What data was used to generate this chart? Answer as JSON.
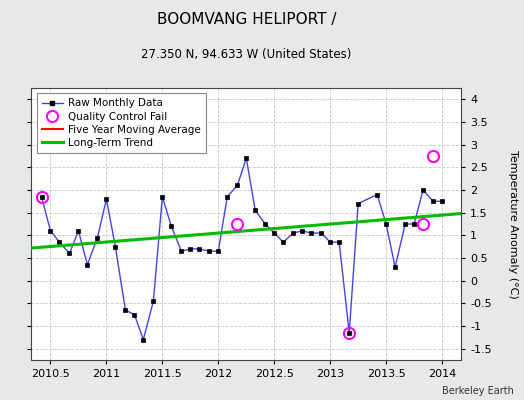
{
  "title": "BOOMVANG HELIPORT /",
  "subtitle": "27.350 N, 94.633 W (United States)",
  "ylabel": "Temperature Anomaly (°C)",
  "watermark": "Berkeley Earth",
  "xlim": [
    2010.33,
    2014.17
  ],
  "ylim": [
    -1.75,
    4.25
  ],
  "yticks": [
    -1.5,
    -1.0,
    -0.5,
    0.0,
    0.5,
    1.0,
    1.5,
    2.0,
    2.5,
    3.0,
    3.5,
    4.0
  ],
  "xticks": [
    2010.5,
    2011.0,
    2011.5,
    2012.0,
    2012.5,
    2013.0,
    2013.5,
    2014.0
  ],
  "raw_x": [
    2010.42,
    2010.5,
    2010.58,
    2010.67,
    2010.75,
    2010.83,
    2010.92,
    2011.0,
    2011.08,
    2011.17,
    2011.25,
    2011.33,
    2011.42,
    2011.5,
    2011.58,
    2011.67,
    2011.75,
    2011.83,
    2011.92,
    2012.0,
    2012.08,
    2012.17,
    2012.25,
    2012.33,
    2012.42,
    2012.5,
    2012.58,
    2012.67,
    2012.75,
    2012.83,
    2012.92,
    2013.0,
    2013.08,
    2013.17,
    2013.25,
    2013.42,
    2013.5,
    2013.58,
    2013.67,
    2013.75,
    2013.83,
    2013.92,
    2014.0
  ],
  "raw_y": [
    1.85,
    1.1,
    0.85,
    0.6,
    1.1,
    0.35,
    0.95,
    1.8,
    0.75,
    -0.65,
    -0.75,
    -1.3,
    -0.45,
    1.85,
    1.2,
    0.65,
    0.7,
    0.7,
    0.65,
    0.65,
    1.85,
    2.1,
    2.7,
    1.55,
    1.25,
    1.05,
    0.85,
    1.05,
    1.1,
    1.05,
    1.05,
    0.85,
    0.85,
    -1.15,
    1.7,
    1.9,
    1.25,
    0.3,
    1.25,
    1.25,
    2.0,
    1.75,
    1.75
  ],
  "qc_fail_x": [
    2010.42,
    2012.17,
    2013.17,
    2013.83,
    2013.92
  ],
  "qc_fail_y": [
    1.85,
    1.25,
    -1.15,
    1.25,
    2.75
  ],
  "trend_x": [
    2010.33,
    2014.17
  ],
  "trend_y": [
    0.72,
    1.48
  ],
  "bg_color": "#e8e8e8",
  "plot_bg_color": "#ffffff",
  "grid_color": "#c8c8c8",
  "raw_line_color": "#4444dd",
  "raw_marker_color": "#000000",
  "qc_marker_color": "#ff00ff",
  "trend_color": "#00bb00",
  "title_fontsize": 11,
  "subtitle_fontsize": 8.5,
  "tick_fontsize": 8,
  "legend_fontsize": 7.5
}
